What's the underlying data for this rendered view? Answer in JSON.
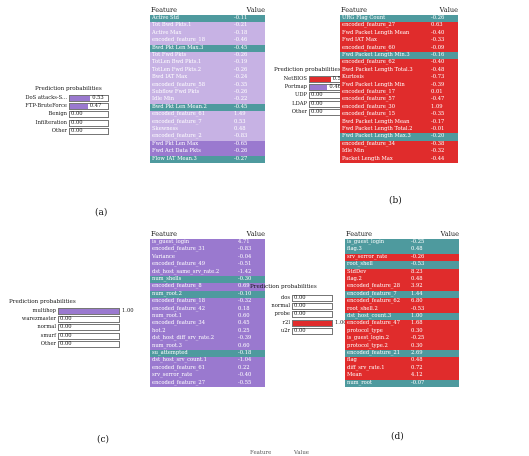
{
  "colors": {
    "purple": "#9a79cf",
    "teal": "#4e9a9e",
    "red": "#e02c2c",
    "light_purple": "#c7b2e4",
    "light_red": "#ee7a7a"
  },
  "panels": [
    {
      "id": "a",
      "caption": "(a)",
      "pp_title": "Prediction probabilities",
      "probabilities": [
        {
          "label": "DoS attacks-S...",
          "value": 0.53,
          "display": "0.53",
          "color": "#9a79cf"
        },
        {
          "label": "FTP-BruteForce",
          "value": 0.47,
          "display": "0.47",
          "color": "#9a79cf"
        },
        {
          "label": "Benign",
          "value": 0.0,
          "display": "0.00",
          "color": "#9a79cf"
        },
        {
          "label": "Infilteration",
          "value": 0.0,
          "display": "0.00",
          "color": "#9a79cf"
        },
        {
          "label": "Other",
          "value": 0.0,
          "display": "0.00",
          "color": "#9a79cf"
        }
      ],
      "table_header": {
        "feature": "Feature",
        "value": "Value"
      },
      "rows": [
        {
          "feature": "Active Std",
          "value": "-0.11",
          "color": "#4e9a9e"
        },
        {
          "feature": "Tot Bwd Pkts.1",
          "value": "-0.21",
          "color": "#c7b2e4"
        },
        {
          "feature": "Active Max",
          "value": "-0.18",
          "color": "#c7b2e4"
        },
        {
          "feature": "encoded_feature_18",
          "value": "-0.46",
          "color": "#c7b2e4"
        },
        {
          "feature": "Bwd Pkt Len Max.3",
          "value": "-0.45",
          "color": "#4e9a9e"
        },
        {
          "feature": "Tot Fwd Pkts",
          "value": "-0.26",
          "color": "#c7b2e4"
        },
        {
          "feature": "TotLen Bwd Pkts.1",
          "value": "-0.19",
          "color": "#c7b2e4"
        },
        {
          "feature": "TotLen Fwd Pkts.2",
          "value": "-0.26",
          "color": "#c7b2e4"
        },
        {
          "feature": "Bwd IAT Max",
          "value": "-0.24",
          "color": "#c7b2e4"
        },
        {
          "feature": "encoded_feature_58",
          "value": "-0.35",
          "color": "#c7b2e4"
        },
        {
          "feature": "Subflow Fwd Pkts",
          "value": "-0.26",
          "color": "#c7b2e4"
        },
        {
          "feature": "Idle Min",
          "value": "-0.22",
          "color": "#c7b2e4"
        },
        {
          "feature": "Bwd Pkt Len Mean.2",
          "value": "-0.45",
          "color": "#4e9a9e"
        },
        {
          "feature": "encoded_feature_61",
          "value": "1.49",
          "color": "#c7b2e4"
        },
        {
          "feature": "encoded_feature_7",
          "value": "0.53",
          "color": "#c7b2e4"
        },
        {
          "feature": "Skewness",
          "value": "0.48",
          "color": "#c7b2e4"
        },
        {
          "feature": "encoded_feature_2",
          "value": "-0.83",
          "color": "#c7b2e4"
        },
        {
          "feature": "Fwd Pkt Len Max",
          "value": "-0.65",
          "color": "#9a79cf"
        },
        {
          "feature": "Fwd Act Data Pkts",
          "value": "-0.26",
          "color": "#9a79cf"
        },
        {
          "feature": "Flow IAT Mean.3",
          "value": "-0.27",
          "color": "#4e9a9e"
        }
      ]
    },
    {
      "id": "b",
      "caption": "(b)",
      "pp_title": "Prediction probabilities",
      "probabilities": [
        {
          "label": "NetBIOS",
          "value": 0.54,
          "display": "0.54",
          "color": "#e02c2c"
        },
        {
          "label": "Portmap",
          "value": 0.46,
          "display": "0.46",
          "color": "#9a79cf"
        },
        {
          "label": "UDP",
          "value": 0.0,
          "display": "0.00",
          "color": "#9a79cf"
        },
        {
          "label": "LDAP",
          "value": 0.0,
          "display": "0.00",
          "color": "#9a79cf"
        },
        {
          "label": "Other",
          "value": 0.0,
          "display": "0.00",
          "color": "#9a79cf"
        }
      ],
      "table_header": {
        "feature": "Feature",
        "value": "Value"
      },
      "rows": [
        {
          "feature": "URG Flag Count",
          "value": "-0.26",
          "color": "#4e9a9e"
        },
        {
          "feature": "encoded_feature_27",
          "value": "0.63",
          "color": "#e02c2c"
        },
        {
          "feature": "Fwd Packet Length Mean",
          "value": "-0.40",
          "color": "#e02c2c"
        },
        {
          "feature": "Fwd IAT Max",
          "value": "-0.33",
          "color": "#e02c2c"
        },
        {
          "feature": "encoded_feature_60",
          "value": "-0.09",
          "color": "#e02c2c"
        },
        {
          "feature": "Fwd Packet Length Min.3",
          "value": "-0.16",
          "color": "#4e9a9e"
        },
        {
          "feature": "encoded_feature_62",
          "value": "-0.40",
          "color": "#e02c2c"
        },
        {
          "feature": "Bwd Packet Length Total.3",
          "value": "-0.48",
          "color": "#e02c2c"
        },
        {
          "feature": "Kurtosis",
          "value": "-0.73",
          "color": "#e02c2c"
        },
        {
          "feature": "Fwd Packet Length Min",
          "value": "-0.39",
          "color": "#e02c2c"
        },
        {
          "feature": "encoded_feature_17",
          "value": "0.01",
          "color": "#e02c2c"
        },
        {
          "feature": "encoded_feature_57",
          "value": "-0.47",
          "color": "#e02c2c"
        },
        {
          "feature": "encoded_feature_30",
          "value": "1.09",
          "color": "#e02c2c"
        },
        {
          "feature": "encoded_feature_15",
          "value": "-0.35",
          "color": "#e02c2c"
        },
        {
          "feature": "Bwd Packet Length Mean",
          "value": "-0.17",
          "color": "#e02c2c"
        },
        {
          "feature": "Fwd Packet Length Total.2",
          "value": "-0.01",
          "color": "#e02c2c"
        },
        {
          "feature": "Fwd Packet Length Max.3",
          "value": "-0.20",
          "color": "#4e9a9e"
        },
        {
          "feature": "encoded_feature_34",
          "value": "-0.38",
          "color": "#e02c2c"
        },
        {
          "feature": "Idle Min",
          "value": "-0.32",
          "color": "#e02c2c"
        },
        {
          "feature": "Packet Length Max",
          "value": "-0.44",
          "color": "#e02c2c"
        }
      ]
    },
    {
      "id": "c",
      "caption": "(c)",
      "pp_title": "Prediction probabilities",
      "probabilities": [
        {
          "label": "multihop",
          "value": 1.0,
          "display": "1.00",
          "color": "#9a79cf"
        },
        {
          "label": "warezmaster",
          "value": 0.0,
          "display": "0.00",
          "color": "#9a79cf"
        },
        {
          "label": "normal",
          "value": 0.0,
          "display": "0.00",
          "color": "#9a79cf"
        },
        {
          "label": "smurf",
          "value": 0.0,
          "display": "0.00",
          "color": "#9a79cf"
        },
        {
          "label": "Other",
          "value": 0.0,
          "display": "0.00",
          "color": "#9a79cf"
        }
      ],
      "table_header": {
        "feature": "Feature",
        "value": "Value"
      },
      "rows": [
        {
          "feature": "is_guest_login",
          "value": "4.71",
          "color": "#9a79cf"
        },
        {
          "feature": "encoded_feature_31",
          "value": "-0.83",
          "color": "#9a79cf"
        },
        {
          "feature": "Variance",
          "value": "-0.04",
          "color": "#9a79cf"
        },
        {
          "feature": "encoded_feature_49",
          "value": "-0.51",
          "color": "#9a79cf"
        },
        {
          "feature": "dst_host_same_srv_rate.2",
          "value": "-1.42",
          "color": "#9a79cf"
        },
        {
          "feature": "num_shells",
          "value": "-0.30",
          "color": "#4e9a9e"
        },
        {
          "feature": "encoded_feature_8",
          "value": "0.69",
          "color": "#9a79cf"
        },
        {
          "feature": "num_root.2",
          "value": "-0.10",
          "color": "#4e9a9e"
        },
        {
          "feature": "encoded_feature_18",
          "value": "-0.32",
          "color": "#9a79cf"
        },
        {
          "feature": "encoded_feature_42",
          "value": "0.18",
          "color": "#9a79cf"
        },
        {
          "feature": "num_root.1",
          "value": "0.60",
          "color": "#9a79cf"
        },
        {
          "feature": "encoded_feature_34",
          "value": "0.45",
          "color": "#9a79cf"
        },
        {
          "feature": "hot.2",
          "value": "0.25",
          "color": "#9a79cf"
        },
        {
          "feature": "dst_host_diff_srv_rate.2",
          "value": "-0.39",
          "color": "#9a79cf"
        },
        {
          "feature": "num_root.3",
          "value": "0.60",
          "color": "#9a79cf"
        },
        {
          "feature": "su_attempted",
          "value": "-0.18",
          "color": "#4e9a9e"
        },
        {
          "feature": "dst_host_srv_count.1",
          "value": "-1.04",
          "color": "#9a79cf"
        },
        {
          "feature": "encoded_feature_61",
          "value": "0.22",
          "color": "#9a79cf"
        },
        {
          "feature": "srv_serror_rate",
          "value": "-0.40",
          "color": "#9a79cf"
        },
        {
          "feature": "encoded_feature_27",
          "value": "-0.55",
          "color": "#9a79cf"
        }
      ]
    },
    {
      "id": "d",
      "caption": "(d)",
      "pp_title": "Prediction probabilities",
      "probabilities": [
        {
          "label": "dos",
          "value": 0.0,
          "display": "0.00",
          "color": "#e02c2c"
        },
        {
          "label": "normal",
          "value": 0.0,
          "display": "0.00",
          "color": "#e02c2c"
        },
        {
          "label": "probe",
          "value": 0.0,
          "display": "0.00",
          "color": "#e02c2c"
        },
        {
          "label": "r2l",
          "value": 1.0,
          "display": "1.00",
          "color": "#e02c2c"
        },
        {
          "label": "u2r",
          "value": 0.0,
          "display": "0.00",
          "color": "#e02c2c"
        }
      ],
      "table_header": {
        "feature": "Feature",
        "value": "Value"
      },
      "rows": [
        {
          "feature": "is_guest_login",
          "value": "-0.25",
          "color": "#4e9a9e"
        },
        {
          "feature": "flag.3",
          "value": "0.48",
          "color": "#4e9a9e"
        },
        {
          "feature": "srv_serror_rate",
          "value": "-0.26",
          "color": "#e02c2c"
        },
        {
          "feature": "root_shell",
          "value": "-0.53",
          "color": "#4e9a9e"
        },
        {
          "feature": "StdDev",
          "value": "8.23",
          "color": "#e02c2c"
        },
        {
          "feature": "flag.2",
          "value": "0.48",
          "color": "#e02c2c"
        },
        {
          "feature": "encoded_feature_28",
          "value": "3.92",
          "color": "#e02c2c"
        },
        {
          "feature": "encoded_feature_7",
          "value": "1.44",
          "color": "#4e9a9e"
        },
        {
          "feature": "encoded_feature_62",
          "value": "6.80",
          "color": "#e02c2c"
        },
        {
          "feature": "root_shell.2",
          "value": "-0.53",
          "color": "#e02c2c"
        },
        {
          "feature": "dst_host_count.3",
          "value": "1.00",
          "color": "#4e9a9e"
        },
        {
          "feature": "encoded_feature_47",
          "value": "1.68",
          "color": "#e02c2c"
        },
        {
          "feature": "protocol_type",
          "value": "0.30",
          "color": "#e02c2c"
        },
        {
          "feature": "is_guest_login.2",
          "value": "-0.25",
          "color": "#e02c2c"
        },
        {
          "feature": "protocol_type.2",
          "value": "0.30",
          "color": "#e02c2c"
        },
        {
          "feature": "encoded_feature_21",
          "value": "2.69",
          "color": "#4e9a9e"
        },
        {
          "feature": "flag",
          "value": "0.48",
          "color": "#e02c2c"
        },
        {
          "feature": "diff_srv_rate.1",
          "value": "0.72",
          "color": "#e02c2c"
        },
        {
          "feature": "Mean",
          "value": "4.12",
          "color": "#e02c2c"
        },
        {
          "feature": "num_root",
          "value": "-0.07",
          "color": "#4e9a9e"
        }
      ]
    }
  ],
  "bottom_fragment": {
    "feature": "Feature",
    "value": "Value"
  }
}
